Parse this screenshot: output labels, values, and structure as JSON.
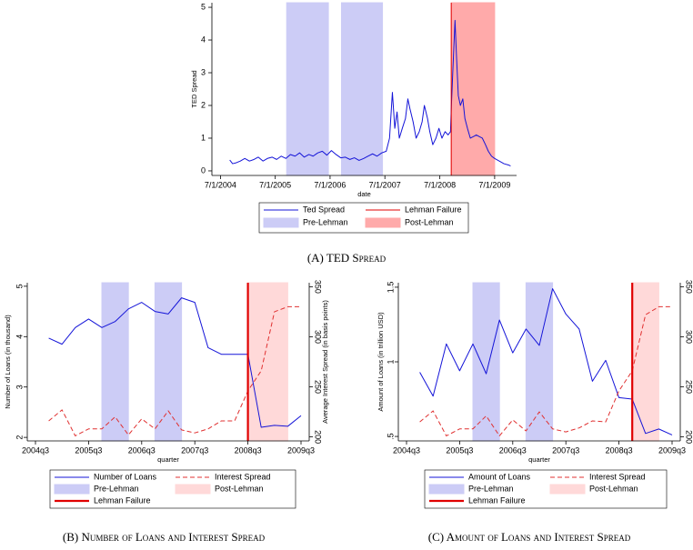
{
  "chart_data": [
    {
      "type": "line",
      "caption": "(A) TED Spread",
      "x_label": "date",
      "y_label": "TED Spread",
      "xlim": [
        "5/5/2004",
        "11/24/2009"
      ],
      "xticks": [
        "7/1/2004",
        "7/1/2005",
        "7/1/2006",
        "7/1/2007",
        "7/1/2008",
        "7/1/2009"
      ],
      "ylim": [
        -0.14,
        5.14
      ],
      "yticks": [
        0,
        1,
        2,
        3,
        4,
        5
      ],
      "x": [
        "9/1/2004",
        "9/20/2004",
        "10/15/2004",
        "11/10/2004",
        "12/10/2004",
        "1/10/2005",
        "2/10/2005",
        "3/10/2005",
        "4/10/2005",
        "5/10/2005",
        "6/10/2005",
        "7/10/2005",
        "8/10/2005",
        "9/10/2005",
        "10/10/2005",
        "11/10/2005",
        "12/10/2005",
        "1/10/2006",
        "2/10/2006",
        "3/10/2006",
        "4/10/2006",
        "5/10/2006",
        "6/10/2006",
        "7/10/2006",
        "8/10/2006",
        "9/10/2006",
        "10/10/2006",
        "11/10/2006",
        "12/10/2006",
        "1/10/2007",
        "2/10/2007",
        "3/10/2007",
        "4/10/2007",
        "5/10/2007",
        "6/10/2007",
        "7/10/2007",
        "8/1/2007",
        "8/20/2007",
        "9/5/2007",
        "9/20/2007",
        "10/5/2007",
        "10/25/2007",
        "11/15/2007",
        "12/1/2007",
        "12/15/2007",
        "1/5/2008",
        "1/25/2008",
        "2/15/2008",
        "3/5/2008",
        "3/20/2008",
        "4/10/2008",
        "4/25/2008",
        "5/15/2008",
        "6/5/2008",
        "6/25/2008",
        "7/15/2008",
        "8/5/2008",
        "8/25/2008",
        "9/10/2008",
        "9/15/2008",
        "9/25/2008",
        "10/10/2008",
        "10/20/2008",
        "11/1/2008",
        "11/15/2008",
        "12/1/2008",
        "12/15/2008",
        "1/1/2009",
        "1/20/2009",
        "2/10/2009",
        "3/1/2009",
        "3/20/2009",
        "4/10/2009",
        "5/1/2009",
        "5/20/2009",
        "6/10/2009",
        "7/1/2009",
        "8/1/2009",
        "9/1/2009",
        "10/1/2009",
        "10/15/2009"
      ],
      "series": [
        {
          "name": "Ted Spread",
          "color": "#1414d8",
          "values": [
            0.33,
            0.22,
            0.25,
            0.3,
            0.38,
            0.3,
            0.35,
            0.42,
            0.3,
            0.38,
            0.42,
            0.35,
            0.45,
            0.38,
            0.5,
            0.45,
            0.55,
            0.42,
            0.5,
            0.45,
            0.55,
            0.6,
            0.48,
            0.62,
            0.5,
            0.4,
            0.42,
            0.35,
            0.4,
            0.32,
            0.38,
            0.45,
            0.52,
            0.45,
            0.55,
            0.6,
            1.0,
            2.4,
            1.3,
            1.8,
            1.0,
            1.3,
            1.6,
            2.2,
            1.9,
            1.5,
            1.0,
            1.2,
            1.5,
            2.0,
            1.6,
            1.2,
            0.8,
            1.0,
            1.3,
            1.0,
            1.2,
            1.1,
            1.2,
            1.9,
            3.0,
            4.6,
            3.5,
            2.3,
            2.0,
            2.2,
            1.6,
            1.3,
            1.0,
            1.05,
            1.1,
            1.05,
            1.0,
            0.8,
            0.6,
            0.45,
            0.38,
            0.3,
            0.22,
            0.18,
            0.15
          ]
        }
      ],
      "bands": [
        {
          "name": "Pre-Lehman",
          "color": "#ccccf6",
          "ranges": [
            [
              "9/15/2005",
              "6/20/2006"
            ],
            [
              "9/15/2006",
              "6/15/2007"
            ]
          ]
        },
        {
          "name": "Post-Lehman",
          "color": "#ffaaaa",
          "ranges": [
            [
              "9/15/2008",
              "7/1/2009"
            ]
          ]
        }
      ],
      "vlines": [
        {
          "name": "Lehman Failure",
          "color": "#e00000",
          "x": "9/15/2008"
        }
      ],
      "legend_order": [
        "series",
        "vlines",
        "bands"
      ]
    },
    {
      "type": "line",
      "caption": "(B) Number of Loans and Interest Spread",
      "x_label": "quarter",
      "y_label": "Number of Loans (in thousand)",
      "y2_label": "Average Interest Spread (in basis points)",
      "categories": [
        "2004q3",
        "2004q4",
        "2005q1",
        "2005q2",
        "2005q3",
        "2005q4",
        "2006q1",
        "2006q2",
        "2006q3",
        "2006q4",
        "2007q1",
        "2007q2",
        "2007q3",
        "2007q4",
        "2008q1",
        "2008q2",
        "2008q3",
        "2008q4",
        "2009q1",
        "2009q2",
        "2009q3"
      ],
      "xticks": [
        "2004q3",
        "2005q3",
        "2006q3",
        "2007q3",
        "2008q3",
        "2009q3"
      ],
      "ylim": [
        1.93,
        5.07
      ],
      "yticks": [
        2,
        3,
        4,
        5
      ],
      "y2lim": [
        196,
        354
      ],
      "y2ticks": [
        200,
        250,
        300,
        350
      ],
      "series": [
        {
          "name": "Number of Loans",
          "color": "#1414d8",
          "values": [
            null,
            3.97,
            3.85,
            4.18,
            4.35,
            4.18,
            4.3,
            4.55,
            4.68,
            4.5,
            4.45,
            4.77,
            4.68,
            3.78,
            3.65,
            3.65,
            3.65,
            2.2,
            2.24,
            2.22,
            2.43
          ]
        },
        {
          "name": "Interest Spread",
          "color": "#e03030",
          "dashed": true,
          "axis": "y2",
          "values": [
            null,
            216,
            227,
            201,
            208,
            208,
            220,
            202,
            218,
            208,
            226,
            207,
            204,
            208,
            216,
            216,
            246,
            266,
            325,
            330,
            330
          ]
        }
      ],
      "bands": [
        {
          "name": "Pre-Lehman",
          "color": "#ccccf6",
          "ranges": [
            [
              "2005q4",
              "2006q2"
            ],
            [
              "2006q4",
              "2007q2"
            ]
          ]
        },
        {
          "name": "Post-Lehman",
          "color": "#ffd9d9",
          "ranges": [
            [
              "2008q3",
              "2009q2"
            ]
          ]
        }
      ],
      "vlines": [
        {
          "name": "Lehman Failure",
          "color": "#e00000",
          "x": "2008q3"
        }
      ],
      "legend_order": [
        "series",
        "bands",
        "vlines"
      ]
    },
    {
      "type": "line",
      "caption": "(C) Amount of Loans and Interest Spread",
      "x_label": "quarter",
      "y_label": "Amount of Loans (in trillion USD)",
      "categories": [
        "2004q3",
        "2004q4",
        "2005q1",
        "2005q2",
        "2005q3",
        "2005q4",
        "2006q1",
        "2006q2",
        "2006q3",
        "2006q4",
        "2007q1",
        "2007q2",
        "2007q3",
        "2007q4",
        "2008q1",
        "2008q2",
        "2008q3",
        "2008q4",
        "2009q1",
        "2009q2",
        "2009q3"
      ],
      "xticks": [
        "2004q3",
        "2005q3",
        "2006q3",
        "2007q3",
        "2008q3",
        "2009q3"
      ],
      "ylim": [
        0.47,
        1.53
      ],
      "yticks": [
        {
          "value": 0.5,
          "label": ".5"
        },
        1,
        1.5
      ],
      "y2lim": [
        196,
        354
      ],
      "y2ticks": [
        200,
        250,
        300,
        350
      ],
      "series": [
        {
          "name": "Amount of Loans",
          "color": "#1414d8",
          "values": [
            null,
            0.93,
            0.77,
            1.12,
            0.94,
            1.12,
            0.92,
            1.28,
            1.06,
            1.22,
            1.11,
            1.49,
            1.32,
            1.22,
            0.87,
            1.01,
            0.76,
            0.75,
            0.52,
            0.55,
            0.51
          ]
        },
        {
          "name": "Interest Spread",
          "color": "#e03030",
          "dashed": true,
          "axis": "y2",
          "values": [
            null,
            215,
            226,
            201,
            208,
            208,
            221,
            201,
            217,
            206,
            225,
            208,
            205,
            209,
            216,
            215,
            246,
            266,
            322,
            330,
            330
          ]
        }
      ],
      "bands": [
        {
          "name": "Pre-Lehman",
          "color": "#ccccf6",
          "ranges": [
            [
              "2005q4",
              "2006q2"
            ],
            [
              "2006q4",
              "2007q2"
            ]
          ]
        },
        {
          "name": "Post-Lehman",
          "color": "#ffd9d9",
          "ranges": [
            [
              "2008q4",
              "2009q2"
            ]
          ]
        }
      ],
      "vlines": [
        {
          "name": "Lehman Failure",
          "color": "#e00000",
          "x": "2008q4"
        }
      ],
      "legend_order": [
        "series",
        "bands",
        "vlines"
      ]
    }
  ]
}
